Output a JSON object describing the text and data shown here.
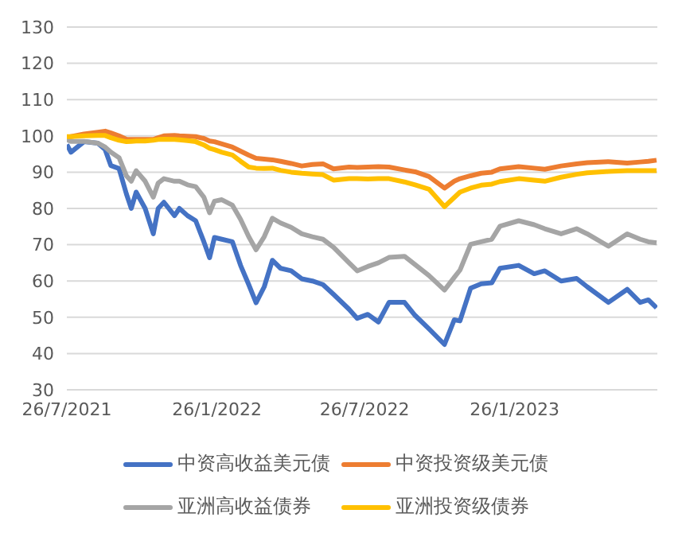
{
  "chart_data": {
    "type": "line",
    "x": [
      "2021-07-26",
      "2021-07-31",
      "2021-08-16",
      "2021-09-02",
      "2021-09-11",
      "2021-09-18",
      "2021-09-28",
      "2021-10-07",
      "2021-10-13",
      "2021-10-19",
      "2021-10-30",
      "2021-11-09",
      "2021-11-15",
      "2021-11-22",
      "2021-12-05",
      "2021-12-11",
      "2021-12-21",
      "2021-12-31",
      "2022-01-10",
      "2022-01-17",
      "2022-01-23",
      "2022-02-01",
      "2022-02-14",
      "2022-02-24",
      "2022-03-06",
      "2022-03-15",
      "2022-03-25",
      "2022-04-04",
      "2022-04-14",
      "2022-04-27",
      "2022-05-10",
      "2022-05-23",
      "2022-06-05",
      "2022-06-18",
      "2022-07-07",
      "2022-07-17",
      "2022-07-30",
      "2022-08-12",
      "2022-08-25",
      "2022-09-13",
      "2022-09-26",
      "2022-10-13",
      "2022-11-01",
      "2022-11-13",
      "2022-11-20",
      "2022-12-03",
      "2022-12-16",
      "2022-12-29",
      "2023-01-08",
      "2023-01-31",
      "2023-02-19",
      "2023-03-04",
      "2023-03-24",
      "2023-04-12",
      "2023-04-25",
      "2023-05-21",
      "2023-06-13",
      "2023-06-29",
      "2023-07-09",
      "2023-07-19"
    ],
    "series": [
      {
        "name": "中资高收益美元债",
        "color": "#4472c4",
        "values": [
          97.6,
          95.5,
          98.4,
          98,
          96.2,
          91.8,
          91,
          84,
          80,
          84.5,
          80,
          73,
          80,
          81.7,
          78,
          80,
          78,
          76.6,
          70.8,
          66.4,
          72,
          71.5,
          70.8,
          64.3,
          59,
          54,
          58.4,
          65.7,
          63.5,
          62.8,
          60.6,
          60,
          59,
          56.3,
          52.2,
          49.7,
          50.8,
          48.7,
          54.1,
          54.1,
          50.5,
          46.8,
          42.5,
          49.3,
          49,
          58,
          59.2,
          59.5,
          63.5,
          64.3,
          62,
          62.8,
          60,
          60.7,
          58.4,
          54.1,
          57.7,
          54.1,
          54.8,
          52.6
        ]
      },
      {
        "name": "中资投资级美元债",
        "color": "#ed7d31",
        "values": [
          99.5,
          99.8,
          100.5,
          101,
          101.3,
          100.8,
          100,
          99.1,
          99,
          99,
          99,
          99,
          99.5,
          100,
          100.1,
          100,
          99.9,
          99.8,
          99.3,
          98.6,
          98.4,
          97.8,
          96.9,
          95.8,
          94.7,
          93.8,
          93.6,
          93.4,
          93,
          92.4,
          91.7,
          92.1,
          92.3,
          90.9,
          91.4,
          91.3,
          91.4,
          91.5,
          91.4,
          90.6,
          90.1,
          88.8,
          85.6,
          87.5,
          88.2,
          89,
          89.7,
          90,
          90.9,
          91.5,
          91.1,
          90.8,
          91.7,
          92.3,
          92.6,
          92.9,
          92.5,
          92.8,
          93,
          93.3
        ]
      },
      {
        "name": "亚洲高收益债券",
        "color": "#a5a5a5",
        "values": [
          99,
          98.5,
          98.5,
          98,
          96.9,
          95.5,
          94,
          89,
          87.5,
          90.4,
          87.5,
          83.1,
          87,
          88.2,
          87.5,
          87.5,
          86.5,
          86,
          83.1,
          78.8,
          82,
          82.4,
          80.9,
          77,
          72.2,
          68.6,
          72.2,
          77.3,
          76,
          74.8,
          73,
          72.2,
          71.5,
          69.3,
          65,
          62.8,
          64,
          65,
          66.5,
          66.8,
          64.5,
          61.5,
          57.5,
          61,
          63,
          70.1,
          70.8,
          71.5,
          75.1,
          76.6,
          75.5,
          74.4,
          73,
          74.4,
          73,
          69.6,
          73,
          71.5,
          70.8,
          70.5
        ]
      },
      {
        "name": "亚洲投资级债券",
        "color": "#ffc000",
        "values": [
          99.8,
          99.8,
          100,
          100.1,
          100.1,
          99.5,
          98.8,
          98.4,
          98.5,
          98.6,
          98.6,
          98.8,
          99,
          99.1,
          99,
          98.9,
          98.7,
          98.4,
          97.5,
          96.6,
          96.2,
          95.5,
          94.7,
          93,
          91.4,
          91.1,
          91,
          91.1,
          90.5,
          90,
          89.7,
          89.5,
          89.3,
          87.8,
          88.2,
          88.2,
          88.1,
          88.2,
          88.2,
          87.3,
          86.5,
          85.3,
          80.5,
          83,
          84.5,
          85.6,
          86.4,
          86.7,
          87.4,
          88.2,
          87.8,
          87.5,
          88.6,
          89.4,
          89.8,
          90.2,
          90.4,
          90.4,
          90.4,
          90.4
        ]
      }
    ],
    "xlim": [
      "2021-07-26",
      "2023-07-20"
    ],
    "xticks": [
      {
        "value": "2021-07-26",
        "label": "26/7/2021"
      },
      {
        "value": "2022-01-26",
        "label": "26/1/2022"
      },
      {
        "value": "2022-07-26",
        "label": "26/7/2022"
      },
      {
        "value": "2023-01-26",
        "label": "26/1/2023"
      }
    ],
    "ylim": [
      30,
      130
    ],
    "yticks": [
      30,
      40,
      50,
      60,
      70,
      80,
      90,
      100,
      110,
      120,
      130
    ],
    "grid": "y",
    "legend": "bottom",
    "marker": "none",
    "line_style": "solid"
  }
}
